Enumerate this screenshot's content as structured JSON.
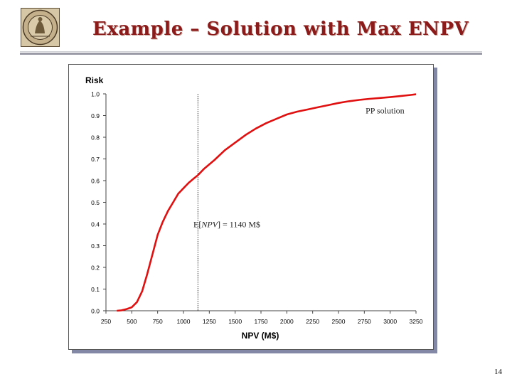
{
  "slide": {
    "title": "Example – Solution with Max ENPV",
    "page_number": "14"
  },
  "colors": {
    "title": "#8b1a1a",
    "curve": "#e01010",
    "frame_shadow": "#8288a6"
  },
  "chart_data": {
    "type": "line",
    "xlabel": "NPV (M$)",
    "ylabel": "Risk",
    "xlim": [
      250,
      3250
    ],
    "ylim": [
      0,
      1
    ],
    "xticks": [
      250,
      500,
      750,
      1000,
      1250,
      1500,
      1750,
      2000,
      2250,
      2500,
      2750,
      3000,
      3250
    ],
    "xtick_labels": [
      "250",
      "500",
      "750",
      "1000",
      "1250",
      "1500",
      "1750",
      "2000",
      "2250",
      "2500",
      "2750",
      "3000",
      "3250"
    ],
    "yticks": [
      0,
      0.1,
      0.2,
      0.3,
      0.4,
      0.5,
      0.6,
      0.7,
      0.8,
      0.9,
      1.0
    ],
    "ytick_labels": [
      "0.0",
      "0.1",
      "0.2",
      "0.3",
      "0.4",
      "0.5",
      "0.6",
      "0.7",
      "0.8",
      "0.9",
      "1.0"
    ],
    "grid": false,
    "series": [
      {
        "name": "PP solution",
        "x": [
          355,
          400,
          450,
          500,
          550,
          600,
          650,
          700,
          750,
          800,
          850,
          900,
          950,
          1000,
          1050,
          1100,
          1140,
          1200,
          1300,
          1400,
          1500,
          1600,
          1700,
          1800,
          1900,
          2000,
          2100,
          2200,
          2300,
          2400,
          2500,
          2600,
          2700,
          2800,
          2900,
          3000,
          3100,
          3200,
          3250
        ],
        "y": [
          0.0,
          0.002,
          0.008,
          0.016,
          0.04,
          0.09,
          0.17,
          0.26,
          0.35,
          0.41,
          0.46,
          0.5,
          0.54,
          0.565,
          0.59,
          0.61,
          0.625,
          0.655,
          0.695,
          0.74,
          0.775,
          0.81,
          0.84,
          0.865,
          0.885,
          0.905,
          0.918,
          0.928,
          0.938,
          0.948,
          0.958,
          0.966,
          0.972,
          0.977,
          0.981,
          0.985,
          0.99,
          0.995,
          0.998
        ]
      }
    ],
    "annotations": [
      {
        "text": "PP solution",
        "x": 2950,
        "y": 0.91
      },
      {
        "text_prefix": "E[",
        "text_italic": "NPV",
        "text_suffix": "] = 1140 M$",
        "x": 1420,
        "y": 0.385
      }
    ],
    "reference_line": {
      "x": 1140,
      "style": "dotted"
    }
  }
}
